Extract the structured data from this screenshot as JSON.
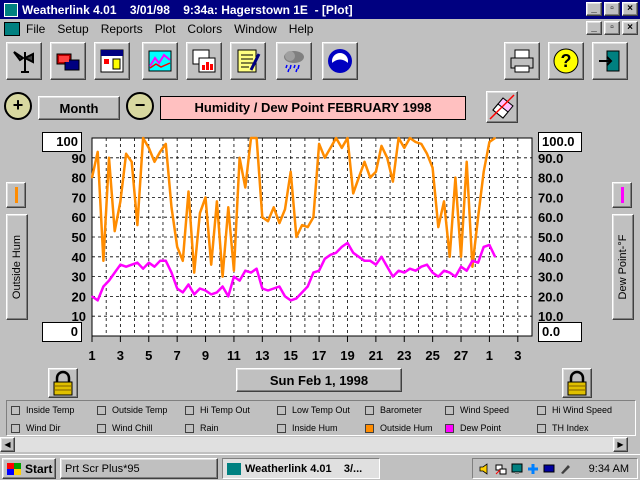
{
  "window": {
    "title": "Weatherlink 4.01    3/01/98    9:34a: Hagerstown 1E  - [Plot]",
    "buttons": [
      "_",
      "▫",
      "×"
    ]
  },
  "menu": {
    "items": [
      "File",
      "Setup",
      "Reports",
      "Plot",
      "Colors",
      "Window",
      "Help"
    ],
    "mdi_buttons": [
      "_",
      "▫",
      "×"
    ]
  },
  "toolbar": {
    "icons": [
      "weather-station-icon",
      "modem-icon",
      "calendar-icon",
      "chart-icon",
      "bar-chart-icon",
      "notepad-icon",
      "rain-cloud-icon",
      "noaa-icon",
      "printer-icon",
      "help-icon",
      "exit-icon"
    ]
  },
  "controls": {
    "zoom_in": "+",
    "zoom_out": "−",
    "period": "Month",
    "title": "Humidity / Dew Point  FEBRUARY  1998",
    "date": "Sun Feb 1, 1998"
  },
  "axes": {
    "left_top": "100",
    "left_bottom": "0",
    "right_top": "100.0",
    "right_bottom": "0.0",
    "left_label": "Outside Hum",
    "right_label": "Dew Point-°F"
  },
  "colors": {
    "humidity": "#ff8c00",
    "dew_point": "#ff00ff",
    "title_bg": "#ffc0c0",
    "titlebar": "#000080"
  },
  "chart_data": {
    "type": "line",
    "left_ticks": [
      "100",
      "90",
      "80",
      "70",
      "60",
      "50",
      "40",
      "30",
      "20",
      "10",
      "0"
    ],
    "right_ticks": [
      "100.0",
      "90.0",
      "80.0",
      "70.0",
      "60.0",
      "50.0",
      "40.0",
      "30.0",
      "20.0",
      "10.0",
      "0.0"
    ],
    "x_ticks": [
      "1",
      "3",
      "5",
      "7",
      "9",
      "11",
      "13",
      "15",
      "17",
      "19",
      "21",
      "23",
      "25",
      "27",
      "1",
      "3"
    ],
    "ylim": [
      0,
      100
    ],
    "x_range": [
      1,
      32
    ],
    "grid": true,
    "series": [
      {
        "name": "Outside Hum",
        "color": "#ff8c00",
        "x": [
          1,
          1.4,
          1.8,
          2.2,
          2.6,
          3,
          3.4,
          3.8,
          4.2,
          4.6,
          5,
          5.4,
          5.8,
          6.2,
          6.6,
          7,
          7.4,
          7.8,
          8.2,
          8.6,
          9,
          9.4,
          9.8,
          10.2,
          10.6,
          11,
          11.4,
          11.8,
          12.2,
          12.6,
          13,
          13.4,
          13.8,
          14.2,
          14.6,
          15,
          15.4,
          15.8,
          16.2,
          16.6,
          17,
          17.4,
          17.8,
          18.2,
          18.6,
          19,
          19.4,
          19.8,
          20.2,
          20.6,
          21,
          21.4,
          21.8,
          22.2,
          22.6,
          23,
          23.4,
          23.8,
          24.2,
          24.6,
          25,
          25.4,
          25.8,
          26.2,
          26.6,
          27,
          27.4,
          27.8,
          28.2,
          28.6,
          29,
          29.4
        ],
        "values": [
          80,
          93,
          38,
          90,
          53,
          68,
          92,
          88,
          56,
          100,
          95,
          88,
          93,
          97,
          65,
          45,
          38,
          73,
          32,
          62,
          70,
          36,
          68,
          30,
          65,
          33,
          90,
          75,
          100,
          100,
          60,
          58,
          65,
          57,
          64,
          83,
          50,
          56,
          55,
          60,
          97,
          90,
          95,
          100,
          95,
          100,
          72,
          80,
          88,
          80,
          83,
          96,
          90,
          78,
          100,
          95,
          100,
          98,
          97,
          92,
          85,
          55,
          68,
          40,
          80,
          40,
          88,
          35,
          60,
          83,
          98,
          100
        ]
      },
      {
        "name": "Dew Point",
        "color": "#ff00ff",
        "x": [
          1,
          1.4,
          1.8,
          2.2,
          2.6,
          3,
          3.4,
          3.8,
          4.2,
          4.6,
          5,
          5.4,
          5.8,
          6.2,
          6.6,
          7,
          7.4,
          7.8,
          8.2,
          8.6,
          9,
          9.4,
          9.8,
          10.2,
          10.6,
          11,
          11.4,
          11.8,
          12.2,
          12.6,
          13,
          13.4,
          13.8,
          14.2,
          14.6,
          15,
          15.4,
          15.8,
          16.2,
          16.6,
          17,
          17.4,
          17.8,
          18.2,
          18.6,
          19,
          19.4,
          19.8,
          20.2,
          20.6,
          21,
          21.4,
          21.8,
          22.2,
          22.6,
          23,
          23.4,
          23.8,
          24.2,
          24.6,
          25,
          25.4,
          25.8,
          26.2,
          26.6,
          27,
          27.4,
          27.8,
          28.2,
          28.6,
          29,
          29.4
        ],
        "values": [
          20,
          18,
          25,
          28,
          32,
          36,
          35,
          36,
          37,
          34,
          37,
          35,
          38,
          38,
          32,
          24,
          22,
          26,
          21,
          24,
          23,
          21,
          22,
          25,
          20,
          30,
          28,
          33,
          32,
          34,
          24,
          23,
          24,
          25,
          20,
          18,
          19,
          22,
          25,
          32,
          33,
          39,
          41,
          42,
          45,
          47,
          42,
          40,
          38,
          38,
          36,
          40,
          35,
          30,
          33,
          32,
          34,
          33,
          35,
          36,
          32,
          30,
          33,
          32,
          30,
          35,
          33,
          38,
          37,
          45,
          46,
          40
        ]
      }
    ]
  },
  "legend": [
    [
      "Inside Temp",
      "Outside Temp",
      "Hi Temp Out",
      "Low Temp Out",
      "Barometer",
      "Wind Speed",
      "Hi Wind Speed"
    ],
    [
      "Wind Dir",
      "Wind Chill",
      "Rain",
      "Inside Hum",
      "Outside Hum",
      "Dew Point",
      "TH Index"
    ]
  ],
  "legend_checked": {
    "Outside Hum": "#ff8c00",
    "Dew Point": "#ff00ff"
  },
  "taskbar": {
    "start": "Start",
    "items": [
      "Prt Scr Plus*95",
      "Weatherlink 4.01    3/..."
    ],
    "clock": "9:34 AM"
  }
}
